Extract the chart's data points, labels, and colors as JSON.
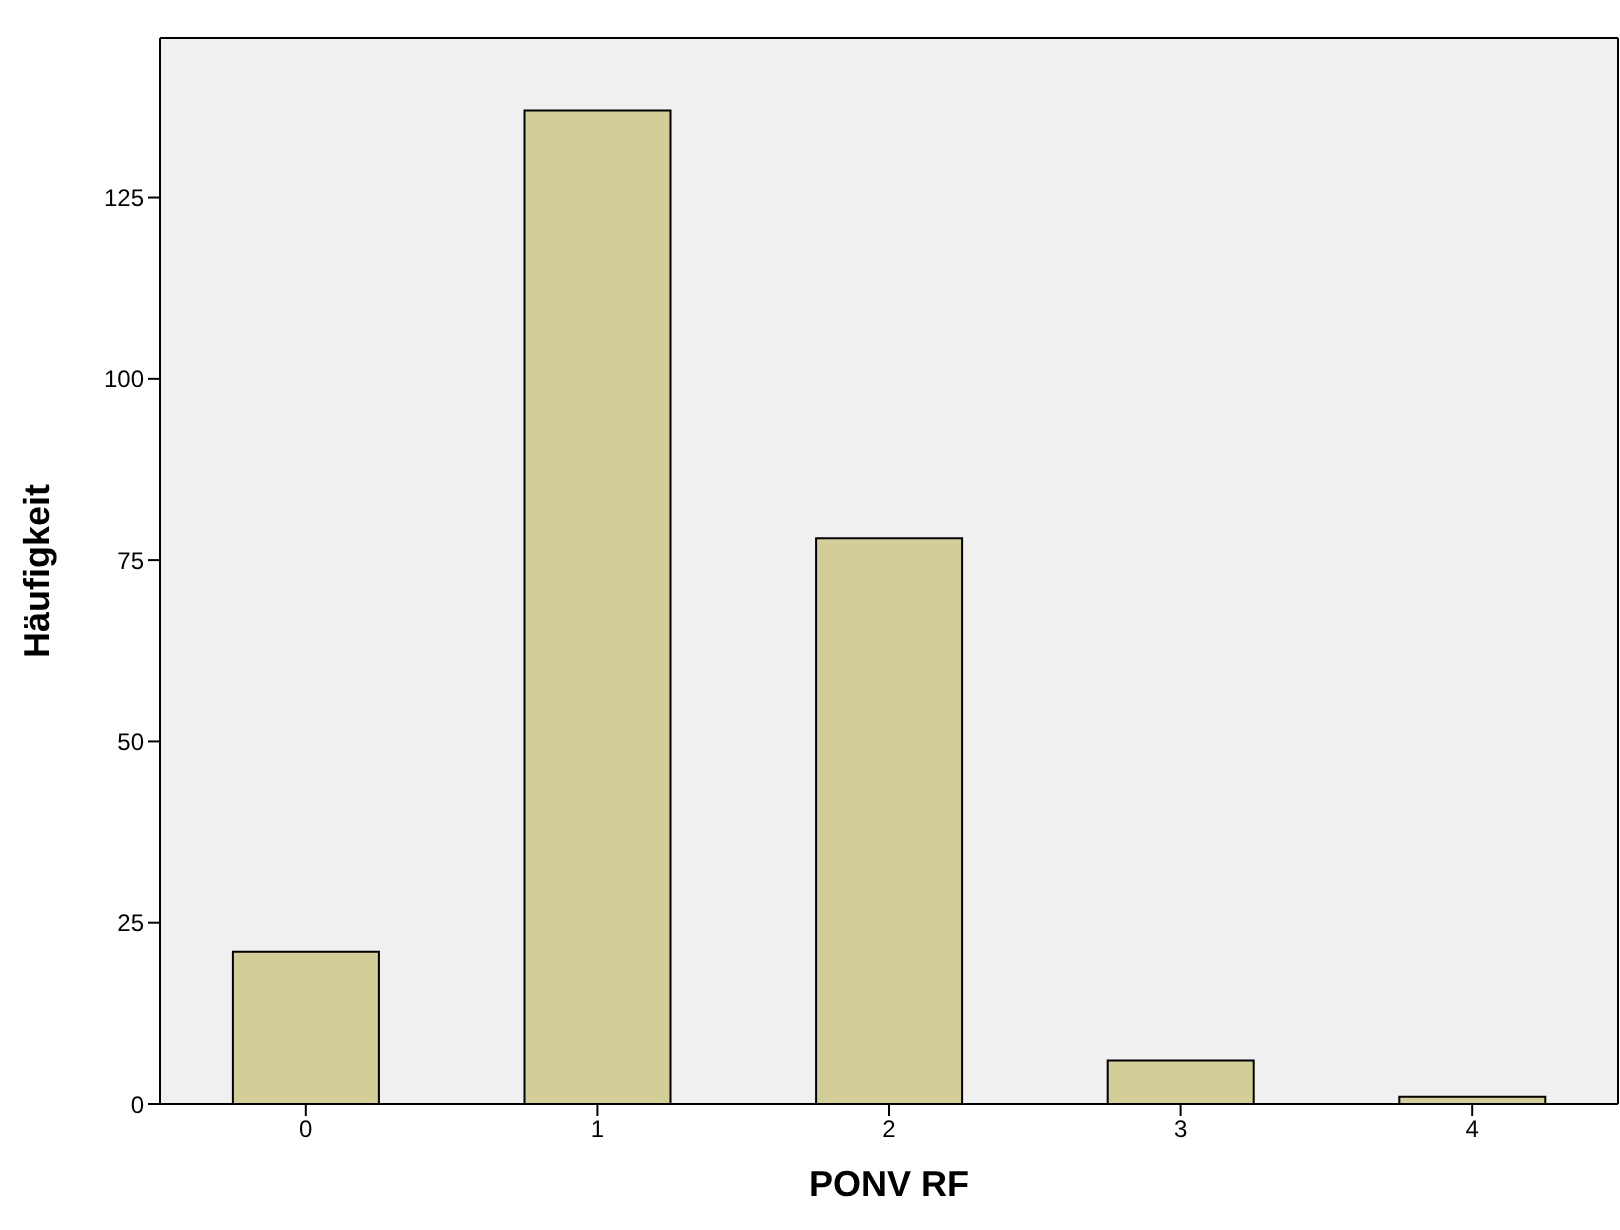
{
  "chart_data": {
    "type": "bar",
    "xlabel": "PONV RF",
    "ylabel": "Häufigkeit",
    "categories": [
      "0",
      "1",
      "2",
      "3",
      "4"
    ],
    "values": [
      21,
      137,
      78,
      6,
      1
    ],
    "color": "#d3ce97",
    "ylim": [
      0,
      147
    ],
    "yticks": [
      0,
      25,
      50,
      75,
      100,
      125
    ]
  }
}
